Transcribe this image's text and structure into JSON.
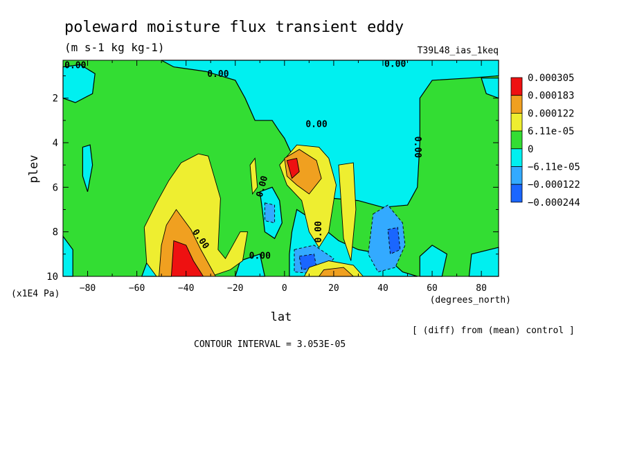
{
  "chart_data": {
    "type": "heatmap",
    "title": "poleward moisture flux transient eddy",
    "units": "(m s-1 kg kg-1)",
    "run_label": "T39L48_ias_1keq",
    "xlabel": "lat",
    "x_units": "(degrees_north)",
    "ylabel": "plev",
    "y_units": "(x1E4 Pa)",
    "xlim": [
      -90,
      87
    ],
    "ylim": [
      10,
      0.3
    ],
    "x_ticks": [
      -80,
      -60,
      -40,
      -20,
      0,
      20,
      40,
      60,
      80
    ],
    "y_ticks": [
      2,
      4,
      6,
      8,
      10
    ],
    "contour_interval_text": "CONTOUR INTERVAL = 3.053E-05",
    "comparison_note": "[ (diff) from (mean) control ]",
    "contour_labels": [
      "0.00",
      "0.00",
      "0.00",
      "0.00",
      "0.00",
      "0.00",
      "0.00",
      "0.00",
      "0.00"
    ],
    "colorbar": {
      "labels": [
        "0.000305",
        "0.000183",
        "0.000122",
        "6.11e-05",
        "0",
        "−6.11e-05",
        "−0.000122",
        "−0.000244"
      ],
      "colors": [
        "#ee1111",
        "#f0a020",
        "#eeee30",
        "#33dd33",
        "#00f0f0",
        "#33aaff",
        "#1a66ff"
      ]
    },
    "field_colors": {
      "neutral": "#33dd33",
      "cyan": "#00f0f0",
      "mid_blue": "#33aaff",
      "blue": "#1a66ff",
      "yellow": "#eeee30",
      "orange": "#f0a020",
      "red": "#ee1111"
    },
    "features": [
      {
        "level": "cyan",
        "points": [
          [
            -50,
            0.3
          ],
          [
            0,
            0.3
          ],
          [
            45,
            0.3
          ],
          [
            87,
            0.3
          ],
          [
            87,
            1.0
          ],
          [
            75,
            1.1
          ],
          [
            60,
            1.2
          ],
          [
            55,
            2.0
          ],
          [
            55,
            4.0
          ],
          [
            54,
            6.0
          ],
          [
            50,
            6.8
          ],
          [
            40,
            6.9
          ],
          [
            30,
            6.6
          ],
          [
            20,
            6.5
          ],
          [
            10,
            5.9
          ],
          [
            5,
            5.0
          ],
          [
            0,
            3.8
          ],
          [
            -2,
            3.5
          ],
          [
            -5,
            3.0
          ],
          [
            -12,
            3.0
          ],
          [
            -16,
            2.0
          ],
          [
            -20,
            1.2
          ],
          [
            -32,
            0.8
          ],
          [
            -45,
            0.6
          ]
        ]
      },
      {
        "level": "cyan",
        "points": [
          [
            -10,
            6.2
          ],
          [
            -5,
            6.0
          ],
          [
            -2,
            6.6
          ],
          [
            -1,
            7.6
          ],
          [
            -4,
            8.3
          ],
          [
            -8,
            8.0
          ],
          [
            -9,
            7.0
          ]
        ]
      },
      {
        "level": "cyan",
        "points": [
          [
            5,
            7.0
          ],
          [
            12,
            7.5
          ],
          [
            22,
            8.4
          ],
          [
            30,
            8.8
          ],
          [
            40,
            9.0
          ],
          [
            48,
            9.8
          ],
          [
            54,
            10
          ],
          [
            2,
            10
          ],
          [
            2,
            9.0
          ],
          [
            3,
            8.0
          ]
        ]
      },
      {
        "level": "cyan",
        "points": [
          [
            -90,
            0.6
          ],
          [
            -83,
            0.5
          ],
          [
            -77,
            0.9
          ],
          [
            -78,
            1.8
          ],
          [
            -85,
            2.2
          ],
          [
            -90,
            2.0
          ]
        ]
      },
      {
        "level": "cyan",
        "points": [
          [
            -82,
            4.2
          ],
          [
            -79,
            4.1
          ],
          [
            -78,
            5.0
          ],
          [
            -80,
            6.2
          ],
          [
            -82,
            5.5
          ]
        ]
      },
      {
        "level": "cyan",
        "points": [
          [
            -90,
            8.2
          ],
          [
            -86,
            8.8
          ],
          [
            -86,
            10
          ],
          [
            -90,
            10
          ]
        ]
      },
      {
        "level": "cyan",
        "points": [
          [
            -56,
            9.4
          ],
          [
            -48,
            8.9
          ],
          [
            -46,
            10
          ],
          [
            -58,
            10
          ]
        ]
      },
      {
        "level": "cyan",
        "points": [
          [
            55,
            9.1
          ],
          [
            60,
            8.6
          ],
          [
            66,
            9.0
          ],
          [
            64,
            10
          ],
          [
            55,
            10
          ]
        ]
      },
      {
        "level": "cyan",
        "points": [
          [
            76,
            9.0
          ],
          [
            87,
            8.7
          ],
          [
            87,
            10
          ],
          [
            75,
            10
          ]
        ]
      },
      {
        "level": "cyan",
        "points": [
          [
            -18,
            9.3
          ],
          [
            -10,
            9.0
          ],
          [
            -8,
            10
          ],
          [
            -20,
            10
          ]
        ]
      },
      {
        "level": "cyan",
        "points": [
          [
            80,
            1.1
          ],
          [
            87,
            1.1
          ],
          [
            87,
            2.0
          ],
          [
            82,
            1.8
          ]
        ]
      },
      {
        "level": "mid_blue",
        "points": [
          [
            -8,
            6.7
          ],
          [
            -4,
            6.8
          ],
          [
            -4,
            7.6
          ],
          [
            -8,
            7.5
          ]
        ]
      },
      {
        "level": "mid_blue",
        "points": [
          [
            36,
            7.2
          ],
          [
            42,
            6.8
          ],
          [
            48,
            7.6
          ],
          [
            49,
            8.6
          ],
          [
            45,
            9.6
          ],
          [
            38,
            9.8
          ],
          [
            34,
            9.0
          ]
        ]
      },
      {
        "level": "mid_blue",
        "points": [
          [
            4,
            8.8
          ],
          [
            12,
            8.6
          ],
          [
            20,
            9.2
          ],
          [
            15,
            9.9
          ],
          [
            4,
            9.8
          ]
        ]
      },
      {
        "level": "blue",
        "points": [
          [
            42,
            7.9
          ],
          [
            46,
            7.8
          ],
          [
            47,
            8.8
          ],
          [
            43,
            9.0
          ]
        ]
      },
      {
        "level": "blue",
        "points": [
          [
            6,
            9.1
          ],
          [
            12,
            9.0
          ],
          [
            13,
            9.6
          ],
          [
            7,
            9.7
          ]
        ]
      },
      {
        "level": "yellow",
        "points": [
          [
            -57,
            7.8
          ],
          [
            -52,
            6.7
          ],
          [
            -47,
            5.7
          ],
          [
            -42,
            4.9
          ],
          [
            -35,
            4.5
          ],
          [
            -31,
            4.6
          ],
          [
            -26,
            6.5
          ],
          [
            -27,
            8.8
          ],
          [
            -24,
            9.2
          ],
          [
            -18,
            8.0
          ],
          [
            -15,
            8.0
          ],
          [
            -17,
            9.3
          ],
          [
            -22,
            9.7
          ],
          [
            -30,
            10
          ],
          [
            -52,
            10
          ],
          [
            -56,
            9.4
          ]
        ]
      },
      {
        "level": "yellow",
        "points": [
          [
            -14,
            5.0
          ],
          [
            -12,
            4.7
          ],
          [
            -11,
            6.0
          ],
          [
            -13,
            6.3
          ]
        ]
      },
      {
        "level": "yellow",
        "points": [
          [
            -2,
            5.0
          ],
          [
            5,
            4.1
          ],
          [
            14,
            4.2
          ],
          [
            18,
            4.7
          ],
          [
            21,
            5.9
          ],
          [
            18,
            8.0
          ],
          [
            14,
            8.7
          ],
          [
            10,
            8.0
          ],
          [
            7,
            6.6
          ],
          [
            1,
            5.9
          ]
        ]
      },
      {
        "level": "yellow",
        "points": [
          [
            22,
            5.0
          ],
          [
            28,
            4.9
          ],
          [
            29,
            7.0
          ],
          [
            27,
            9.3
          ],
          [
            24,
            8.3
          ]
        ]
      },
      {
        "level": "yellow",
        "points": [
          [
            10,
            9.6
          ],
          [
            18,
            9.3
          ],
          [
            28,
            9.5
          ],
          [
            32,
            10
          ],
          [
            8,
            10
          ]
        ]
      },
      {
        "level": "orange",
        "points": [
          [
            -50,
            8.6
          ],
          [
            -48,
            7.7
          ],
          [
            -44,
            7.0
          ],
          [
            -38,
            7.9
          ],
          [
            -34,
            8.8
          ],
          [
            -30,
            9.6
          ],
          [
            -28,
            10
          ],
          [
            -51,
            10
          ]
        ]
      },
      {
        "level": "orange",
        "points": [
          [
            0,
            4.7
          ],
          [
            6,
            4.3
          ],
          [
            13,
            4.8
          ],
          [
            15,
            5.6
          ],
          [
            10,
            6.3
          ],
          [
            5,
            5.9
          ],
          [
            1,
            5.5
          ]
        ]
      },
      {
        "level": "orange",
        "points": [
          [
            16,
            9.7
          ],
          [
            24,
            9.6
          ],
          [
            28,
            10
          ],
          [
            14,
            10
          ]
        ]
      },
      {
        "level": "red",
        "points": [
          [
            -45,
            8.4
          ],
          [
            -40,
            8.6
          ],
          [
            -37,
            9.3
          ],
          [
            -33,
            10
          ],
          [
            -46,
            10
          ]
        ]
      },
      {
        "level": "red",
        "points": [
          [
            1,
            4.8
          ],
          [
            5,
            4.7
          ],
          [
            6,
            5.3
          ],
          [
            3,
            5.6
          ]
        ]
      }
    ]
  }
}
